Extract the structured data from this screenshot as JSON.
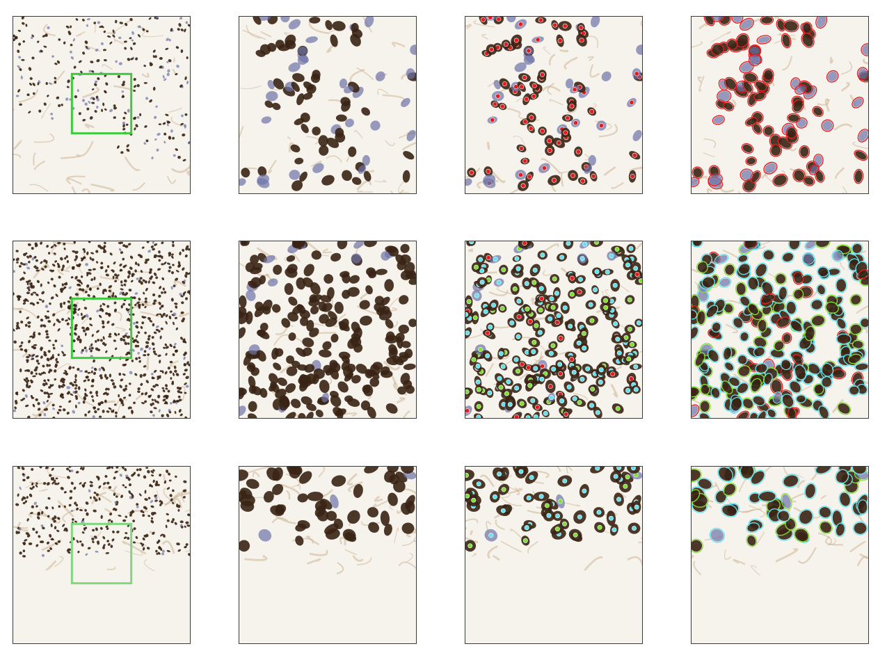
{
  "figure": {
    "rows": [
      {
        "stain": "sparse",
        "annotation_color": "#e41a1c",
        "panels": [
          {
            "kind": "overview",
            "icon": "tissue-overview-image",
            "roi_box_color": "#3ccb3c"
          },
          {
            "kind": "zoom",
            "icon": "tissue-zoom-image"
          },
          {
            "kind": "points",
            "icon": "nuclei-point-annotation-image"
          },
          {
            "kind": "contours",
            "icon": "nuclei-contour-annotation-image"
          }
        ]
      },
      {
        "stain": "dense",
        "annotation_colors": [
          "#5fe3f0",
          "#7ee030",
          "#e41a1c"
        ],
        "panels": [
          {
            "kind": "overview",
            "icon": "tissue-overview-image",
            "roi_box_color": "#3ccb3c"
          },
          {
            "kind": "zoom",
            "icon": "tissue-zoom-image"
          },
          {
            "kind": "points",
            "icon": "nuclei-point-annotation-image"
          },
          {
            "kind": "contours",
            "icon": "nuclei-contour-annotation-image"
          }
        ]
      },
      {
        "stain": "edge",
        "annotation_colors": [
          "#5fe3f0",
          "#7ee030"
        ],
        "panels": [
          {
            "kind": "overview",
            "icon": "tissue-overview-image",
            "roi_box_color": "#7ed87e"
          },
          {
            "kind": "zoom",
            "icon": "tissue-zoom-image"
          },
          {
            "kind": "points",
            "icon": "nuclei-point-annotation-image"
          },
          {
            "kind": "contours",
            "icon": "nuclei-contour-annotation-image"
          }
        ]
      }
    ],
    "colors": {
      "background_tissue": "#f6f2ec",
      "brown_nucleus": "#3a2414",
      "blue_nucleus": "#6d74a8",
      "stroma": "#c9b08c"
    }
  }
}
